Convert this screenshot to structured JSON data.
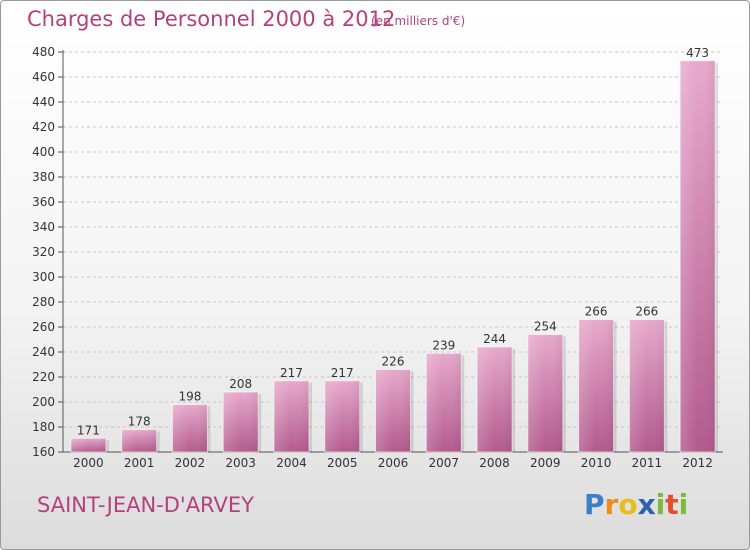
{
  "title": "Charges de Personnel 2000 à 2012",
  "subtitle": "(en milliers d'€)",
  "location": "SAINT-JEAN-D'ARVEY",
  "logo": {
    "text": "Proxiti",
    "letters": [
      {
        "char": "P",
        "color": "#3a7fc7"
      },
      {
        "char": "r",
        "color": "#f08a1c"
      },
      {
        "char": "o",
        "color": "#e8bd19"
      },
      {
        "char": "x",
        "color": "#2a62b0"
      },
      {
        "char": "i",
        "color": "#7dba3c"
      },
      {
        "char": "t",
        "color": "#e64c2e"
      },
      {
        "char": "i",
        "color": "#7dba3c"
      }
    ]
  },
  "colors": {
    "accent": "#b4417e",
    "bar_light": "#e7a9cc",
    "bar_dark": "#b35a8d"
  },
  "chart_data": {
    "type": "bar",
    "categories": [
      "2000",
      "2001",
      "2002",
      "2003",
      "2004",
      "2005",
      "2006",
      "2007",
      "2008",
      "2009",
      "2010",
      "2011",
      "2012"
    ],
    "values": [
      171,
      178,
      198,
      208,
      217,
      217,
      226,
      239,
      244,
      254,
      266,
      266,
      473
    ],
    "data_labels": [
      "171",
      "178",
      "198",
      "208",
      "217",
      "217",
      "226",
      "239",
      "244",
      "254",
      "266",
      "266",
      "473"
    ],
    "ylim": [
      160,
      480
    ],
    "yticks": [
      160,
      180,
      200,
      220,
      240,
      260,
      280,
      300,
      320,
      340,
      360,
      380,
      400,
      420,
      440,
      460,
      480
    ],
    "grid": "horizontal-dashed",
    "legend": "none"
  }
}
